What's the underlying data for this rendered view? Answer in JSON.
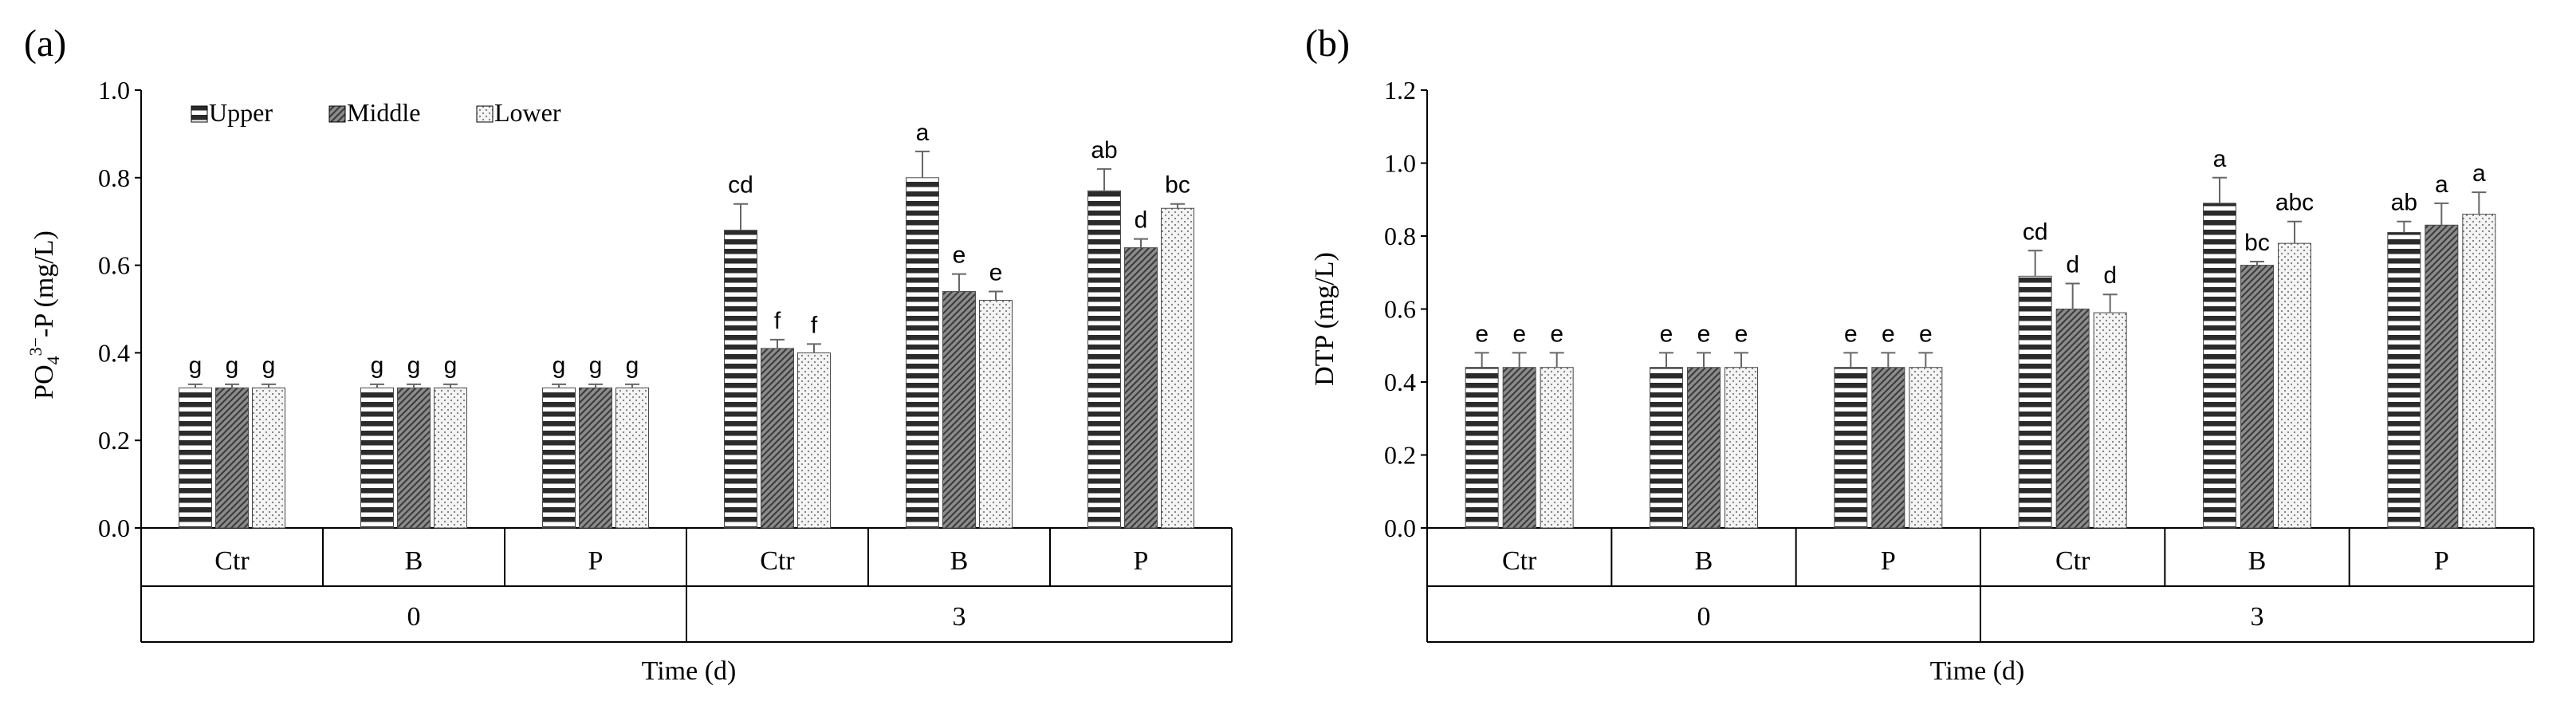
{
  "colors": {
    "upper_dark": "#2b2b2b",
    "upper_light": "#ffffff",
    "middle_base": "#8c8c8c",
    "middle_stroke": "#3d3d3d",
    "lower_base": "#f4f4f4",
    "lower_dot": "#7a7a7a",
    "errorbar": "#666666",
    "axis": "#000000",
    "gridline": "#d9d9d9"
  },
  "shared": {
    "xlabel": "Time (d)",
    "group_labels": [
      "0",
      "3"
    ],
    "category_labels": [
      "Ctr",
      "B",
      "P",
      "Ctr",
      "B",
      "P"
    ],
    "legend": [
      "Upper",
      "Middle",
      "Lower"
    ]
  },
  "chart_data": [
    {
      "type": "bar",
      "panel_label": "(a)",
      "ylabel": "PO43−-P (mg/L)",
      "ylabel_parts": {
        "base": "PO",
        "sub": "4",
        "sup": "3−",
        "rest": "-P  (mg/L)"
      },
      "xlabel": "Time (d)",
      "ylim": [
        0,
        1.0
      ],
      "yticks": [
        "0.0",
        "0.2",
        "0.4",
        "0.6",
        "0.8",
        "1.0"
      ],
      "ytick_values": [
        0,
        0.2,
        0.4,
        0.6,
        0.8,
        1.0
      ],
      "groups": [
        "0",
        "3"
      ],
      "categories": [
        "Ctr",
        "B",
        "P",
        "Ctr",
        "B",
        "P"
      ],
      "series": [
        {
          "name": "Upper",
          "values": [
            0.32,
            0.32,
            0.32,
            0.68,
            0.8,
            0.77
          ],
          "errors": [
            0.008,
            0.008,
            0.008,
            0.06,
            0.06,
            0.05
          ],
          "labels": [
            "g",
            "g",
            "g",
            "cd",
            "a",
            "ab"
          ]
        },
        {
          "name": "Middle",
          "values": [
            0.32,
            0.32,
            0.32,
            0.41,
            0.54,
            0.64
          ],
          "errors": [
            0.008,
            0.008,
            0.008,
            0.02,
            0.04,
            0.02
          ],
          "labels": [
            "g",
            "g",
            "g",
            "f",
            "e",
            "d"
          ]
        },
        {
          "name": "Lower",
          "values": [
            0.32,
            0.32,
            0.32,
            0.4,
            0.52,
            0.73
          ],
          "errors": [
            0.008,
            0.008,
            0.008,
            0.02,
            0.02,
            0.01
          ],
          "labels": [
            "g",
            "g",
            "g",
            "f",
            "e",
            "bc"
          ]
        }
      ],
      "legend_position": "top-left"
    },
    {
      "type": "bar",
      "panel_label": "(b)",
      "ylabel": "DTP  (mg/L)",
      "xlabel": "Time (d)",
      "ylim": [
        0,
        1.2
      ],
      "yticks": [
        "0.0",
        "0.2",
        "0.4",
        "0.6",
        "0.8",
        "1.0",
        "1.2"
      ],
      "ytick_values": [
        0,
        0.2,
        0.4,
        0.6,
        0.8,
        1.0,
        1.2
      ],
      "groups": [
        "0",
        "3"
      ],
      "categories": [
        "Ctr",
        "B",
        "P",
        "Ctr",
        "B",
        "P"
      ],
      "series": [
        {
          "name": "Upper",
          "values": [
            0.44,
            0.44,
            0.44,
            0.69,
            0.89,
            0.81
          ],
          "errors": [
            0.04,
            0.04,
            0.04,
            0.07,
            0.07,
            0.03
          ],
          "labels": [
            "e",
            "e",
            "e",
            "cd",
            "a",
            "ab"
          ]
        },
        {
          "name": "Middle",
          "values": [
            0.44,
            0.44,
            0.44,
            0.6,
            0.72,
            0.83
          ],
          "errors": [
            0.04,
            0.04,
            0.04,
            0.07,
            0.01,
            0.06
          ],
          "labels": [
            "e",
            "e",
            "e",
            "d",
            "bc",
            "a"
          ]
        },
        {
          "name": "Lower",
          "values": [
            0.44,
            0.44,
            0.44,
            0.59,
            0.78,
            0.86
          ],
          "errors": [
            0.04,
            0.04,
            0.04,
            0.05,
            0.06,
            0.06
          ],
          "labels": [
            "e",
            "e",
            "e",
            "d",
            "abc",
            "a"
          ]
        }
      ],
      "legend_position": "none"
    }
  ]
}
